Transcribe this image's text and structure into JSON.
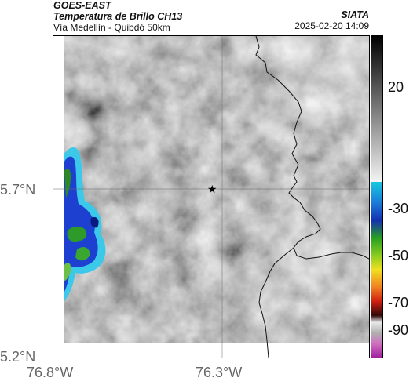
{
  "header": {
    "satellite": "GOES-EAST",
    "product": "Temperatura de Brillo CH13",
    "region": "Vía Medellín - Quibdó 50km",
    "agency": "SIATA",
    "timestamp": "2025-02-20 14:09"
  },
  "axes": {
    "lat_ticks": [
      "5.7°N",
      "5.2°N"
    ],
    "lon_ticks": [
      "76.8°W",
      "76.3°W"
    ]
  },
  "colorbar": {
    "labels": [
      "20",
      "-30",
      "-50",
      "-70",
      "-90"
    ]
  },
  "colors": {
    "background_gray": "#8a8a8a",
    "cold_cloud_cyan": "#3cc8e8",
    "cold_cloud_blue": "#1030c0",
    "cold_cloud_green": "#40a020"
  }
}
